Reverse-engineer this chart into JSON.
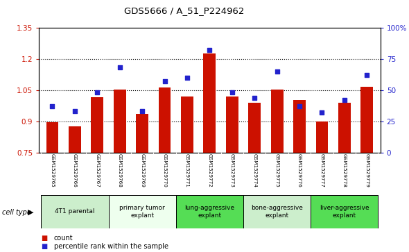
{
  "title": "GDS5666 / A_51_P224962",
  "samples": [
    "GSM1529765",
    "GSM1529766",
    "GSM1529767",
    "GSM1529768",
    "GSM1529769",
    "GSM1529770",
    "GSM1529771",
    "GSM1529772",
    "GSM1529773",
    "GSM1529774",
    "GSM1529775",
    "GSM1529776",
    "GSM1529777",
    "GSM1529778",
    "GSM1529779"
  ],
  "counts": [
    0.895,
    0.877,
    1.015,
    1.052,
    0.935,
    1.063,
    1.02,
    1.225,
    1.02,
    0.99,
    1.052,
    1.002,
    0.9,
    0.99,
    1.065
  ],
  "percentiles": [
    37,
    33,
    48,
    68,
    33,
    57,
    60,
    82,
    48,
    44,
    65,
    37,
    32,
    42,
    62
  ],
  "bar_color": "#CC1100",
  "dot_color": "#2222CC",
  "ylim_left": [
    0.75,
    1.35
  ],
  "ylim_right": [
    0,
    100
  ],
  "yticks_left": [
    0.75,
    0.9,
    1.05,
    1.2,
    1.35
  ],
  "yticks_right": [
    0,
    25,
    50,
    75,
    100
  ],
  "ytick_labels_left": [
    "0.75",
    "0.9",
    "1.05",
    "1.2",
    "1.35"
  ],
  "ytick_labels_right": [
    "0",
    "25",
    "50",
    "75",
    "100%"
  ],
  "groups": [
    {
      "label": "4T1 parental",
      "start": 0,
      "end": 2,
      "color": "#cceecc"
    },
    {
      "label": "primary tumor\nexplant",
      "start": 3,
      "end": 5,
      "color": "#eeffee"
    },
    {
      "label": "lung-aggressive\nexplant",
      "start": 6,
      "end": 8,
      "color": "#55dd55"
    },
    {
      "label": "bone-aggressive\nexplant",
      "start": 9,
      "end": 11,
      "color": "#cceecc"
    },
    {
      "label": "liver-aggressive\nexplant",
      "start": 12,
      "end": 14,
      "color": "#55dd55"
    }
  ],
  "cell_type_label": "cell type",
  "legend_count_label": "count",
  "legend_pct_label": "percentile rank within the sample",
  "plot_bg": "#ffffff",
  "tick_area_bg": "#cccccc"
}
